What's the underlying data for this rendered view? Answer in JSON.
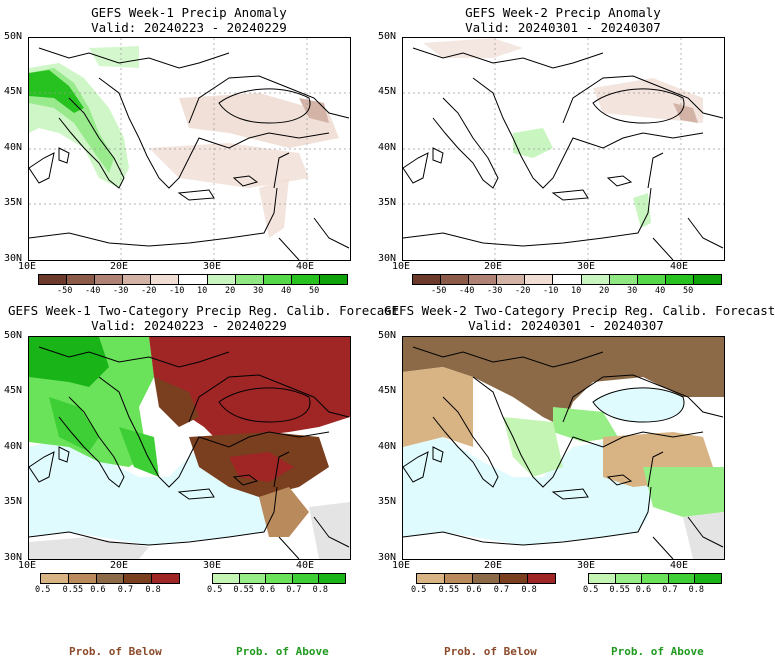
{
  "panels": [
    {
      "title": "GEFS Week-1 Precip Anomaly",
      "valid": "Valid: 20240223 - 20240229"
    },
    {
      "title": "GEFS Week-2 Precip Anomaly",
      "valid": "Valid: 20240301 - 20240307"
    },
    {
      "title": "GEFS Week-1 Two-Category Precip Reg. Calib. Forecast",
      "valid": "Valid: 20240223 - 20240229"
    },
    {
      "title": "GEFS Week-2 Two-Category Precip Reg. Calib. Forecast",
      "valid": "Valid: 20240301 - 20240307"
    }
  ],
  "axes": {
    "lat_labels": [
      "50N",
      "45N",
      "40N",
      "35N",
      "30N"
    ],
    "lon_labels": [
      "10E",
      "20E",
      "30E",
      "40E"
    ]
  },
  "anomaly_colorbar": {
    "ticks": [
      "-50",
      "-40",
      "-30",
      "-20",
      "-10",
      "10",
      "20",
      "30",
      "40",
      "50"
    ],
    "colors": [
      "#6b3a2a",
      "#8c5a48",
      "#b08276",
      "#d4b3a7",
      "#f0ddd4",
      "#ffffff",
      "#c9f5c0",
      "#8fe882",
      "#55d94a",
      "#27c21f",
      "#0ea10a"
    ]
  },
  "prob_colorbars": {
    "below": {
      "ticks": [
        "0.5",
        "0.55",
        "0.6",
        "0.7",
        "0.8"
      ],
      "colors": [
        "#d8b384",
        "#b98a5c",
        "#8c6a47",
        "#7a3f1e",
        "#a02626"
      ]
    },
    "above": {
      "ticks": [
        "0.5",
        "0.55",
        "0.6",
        "0.7",
        "0.8"
      ],
      "colors": [
        "#c4f5b4",
        "#98ee86",
        "#6ae25a",
        "#3dcf35",
        "#18b418"
      ]
    }
  },
  "legend": {
    "below_label": "Prob. of Below",
    "above_label": "Prob. of Above",
    "below_color": "#8b4a2b",
    "above_color": "#1f9a1f"
  }
}
